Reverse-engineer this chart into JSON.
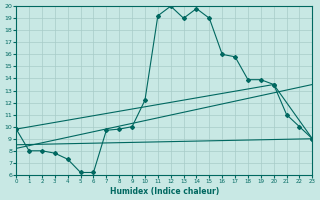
{
  "background_color": "#c8e8e4",
  "grid_color": "#a8ccc8",
  "line_color": "#006860",
  "xlabel": "Humidex (Indice chaleur)",
  "xlim": [
    0,
    23
  ],
  "ylim": [
    6,
    20
  ],
  "xticks": [
    0,
    1,
    2,
    3,
    4,
    5,
    6,
    7,
    8,
    9,
    10,
    11,
    12,
    13,
    14,
    15,
    16,
    17,
    18,
    19,
    20,
    21,
    22,
    23
  ],
  "yticks": [
    6,
    7,
    8,
    9,
    10,
    11,
    12,
    13,
    14,
    15,
    16,
    17,
    18,
    19,
    20
  ],
  "main_x": [
    0,
    1,
    2,
    3,
    4,
    5,
    6,
    7,
    8,
    9,
    10,
    11,
    12,
    13,
    14,
    15,
    16,
    17,
    18,
    19,
    20,
    21,
    22,
    23
  ],
  "main_y": [
    9.8,
    8.0,
    8.0,
    7.8,
    7.3,
    6.2,
    6.2,
    9.7,
    9.8,
    10.0,
    12.2,
    19.2,
    20.0,
    19.0,
    19.8,
    19.0,
    16.0,
    15.8,
    13.9,
    13.9,
    13.5,
    11.0,
    10.0,
    9.0
  ],
  "line2_x": [
    0,
    23
  ],
  "line2_y": [
    8.5,
    9.0
  ],
  "line3_x": [
    0,
    23
  ],
  "line3_y": [
    8.2,
    13.5
  ],
  "line4_x": [
    0,
    20,
    23
  ],
  "line4_y": [
    9.8,
    13.5,
    9.0
  ],
  "figwidth": 3.2,
  "figheight": 2.0,
  "dpi": 100
}
